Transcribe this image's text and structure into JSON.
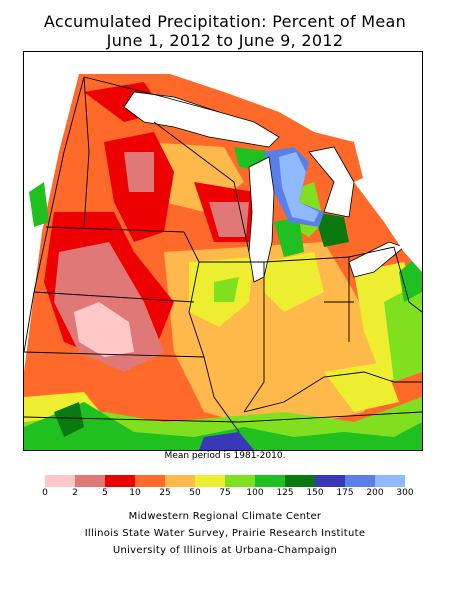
{
  "title_line1": "Accumulated Precipitation: Percent of Mean",
  "title_line2": "June 1, 2012 to June 9, 2012",
  "mean_period_note": "Mean period is 1981-2010.",
  "legend": {
    "labels": [
      "0",
      "2",
      "5",
      "10",
      "25",
      "50",
      "75",
      "100",
      "125",
      "150",
      "175",
      "200",
      "300"
    ],
    "colors": [
      "#ffc8c8",
      "#e07878",
      "#ee0000",
      "#ff6a2a",
      "#ffb84a",
      "#eeee30",
      "#80e020",
      "#20c020",
      "#0a7a10",
      "#3838b8",
      "#5b7fe8",
      "#8fb8ff"
    ]
  },
  "credits": {
    "line1": "Midwestern Regional Climate Center",
    "line2": "Illinois State Water Survey, Prairie Research Institute",
    "line3": "University of Illinois at Urbana-Champaign"
  }
}
